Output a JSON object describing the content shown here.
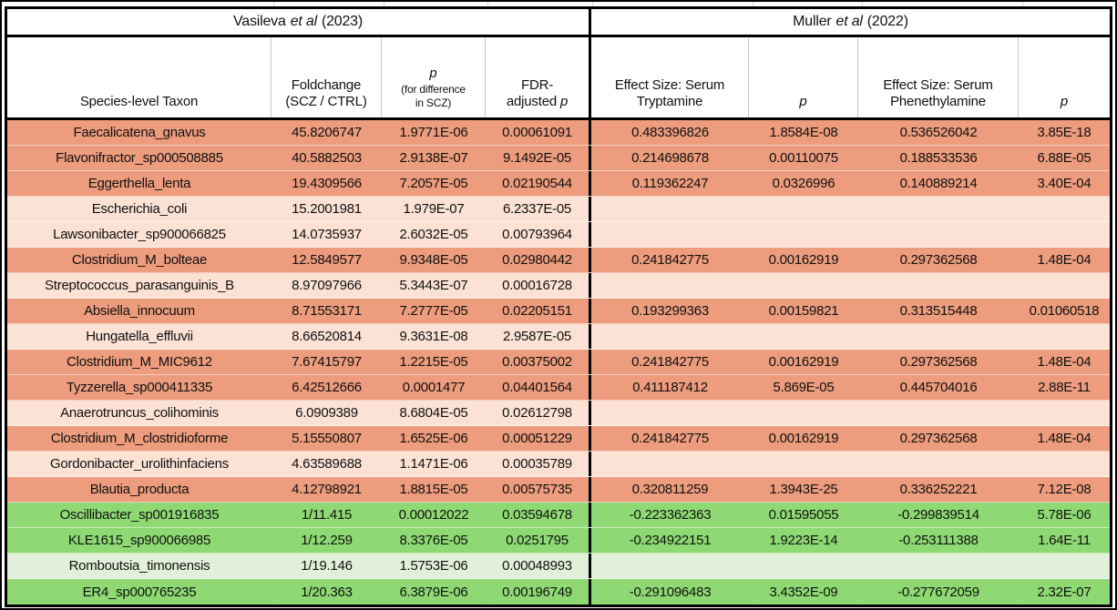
{
  "sections": {
    "left": {
      "author": "Vasileva",
      "etal": "et al",
      "year": "(2023)"
    },
    "right": {
      "author": "Muller",
      "etal": "et al",
      "year": "(2022)"
    }
  },
  "headers": {
    "taxon": "Species-level Taxon",
    "foldchange_line1": "Foldchange",
    "foldchange_line2": "(SCZ / CTRL)",
    "p_symbol": "p",
    "p_diff_line1": "(for difference",
    "p_diff_line2": "in SCZ)",
    "fdr_line1": "FDR-",
    "fdr_line2_prefix": "adjusted ",
    "effect_tryptamine_line1": "Effect Size: Serum",
    "effect_tryptamine_line2": "Tryptamine",
    "effect_phenethylamine_line1": "Effect Size: Serum",
    "effect_phenethylamine_line2": "Phenethylamine"
  },
  "colors": {
    "increased_strong": "#ED9C7D",
    "increased_light": "#FBE2D5",
    "decreased_strong": "#8ED973",
    "decreased_light": "#E2F0DA"
  },
  "rows": [
    {
      "taxon": "Faecalicatena_gnavus",
      "foldchange": "45.8206747",
      "p": "1.9771E-06",
      "fdr": "0.00061091",
      "effect_tryptamine": "0.483396826",
      "p_tryptamine": "1.8584E-08",
      "effect_phenethylamine": "0.536526042",
      "p_phenethylamine": "3.85E-18",
      "tone": "increased_strong"
    },
    {
      "taxon": "Flavonifractor_sp000508885",
      "foldchange": "40.5882503",
      "p": "2.9138E-07",
      "fdr": "9.1492E-05",
      "effect_tryptamine": "0.214698678",
      "p_tryptamine": "0.00110075",
      "effect_phenethylamine": "0.188533536",
      "p_phenethylamine": "6.88E-05",
      "tone": "increased_strong"
    },
    {
      "taxon": "Eggerthella_lenta",
      "foldchange": "19.4309566",
      "p": "7.2057E-05",
      "fdr": "0.02190544",
      "effect_tryptamine": "0.119362247",
      "p_tryptamine": "0.0326996",
      "effect_phenethylamine": "0.140889214",
      "p_phenethylamine": "3.40E-04",
      "tone": "increased_strong"
    },
    {
      "taxon": "Escherichia_coli",
      "foldchange": "15.2001981",
      "p": "1.979E-07",
      "fdr": "6.2337E-05",
      "effect_tryptamine": "",
      "p_tryptamine": "",
      "effect_phenethylamine": "",
      "p_phenethylamine": "",
      "tone": "increased_light"
    },
    {
      "taxon": "Lawsonibacter_sp900066825",
      "foldchange": "14.0735937",
      "p": "2.6032E-05",
      "fdr": "0.00793964",
      "effect_tryptamine": "",
      "p_tryptamine": "",
      "effect_phenethylamine": "",
      "p_phenethylamine": "",
      "tone": "increased_light"
    },
    {
      "taxon": "Clostridium_M_bolteae",
      "foldchange": "12.5849577",
      "p": "9.9348E-05",
      "fdr": "0.02980442",
      "effect_tryptamine": "0.241842775",
      "p_tryptamine": "0.00162919",
      "effect_phenethylamine": "0.297362568",
      "p_phenethylamine": "1.48E-04",
      "tone": "increased_strong"
    },
    {
      "taxon": "Streptococcus_parasanguinis_B",
      "foldchange": "8.97097966",
      "p": "5.3443E-07",
      "fdr": "0.00016728",
      "effect_tryptamine": "",
      "p_tryptamine": "",
      "effect_phenethylamine": "",
      "p_phenethylamine": "",
      "tone": "increased_light"
    },
    {
      "taxon": "Absiella_innocuum",
      "foldchange": "8.71553171",
      "p": "7.2777E-05",
      "fdr": "0.02205151",
      "effect_tryptamine": "0.193299363",
      "p_tryptamine": "0.00159821",
      "effect_phenethylamine": "0.313515448",
      "p_phenethylamine": "0.01060518",
      "tone": "increased_strong"
    },
    {
      "taxon": "Hungatella_effluvii",
      "foldchange": "8.66520814",
      "p": "9.3631E-08",
      "fdr": "2.9587E-05",
      "effect_tryptamine": "",
      "p_tryptamine": "",
      "effect_phenethylamine": "",
      "p_phenethylamine": "",
      "tone": "increased_light"
    },
    {
      "taxon": "Clostridium_M_MIC9612",
      "foldchange": "7.67415797",
      "p": "1.2215E-05",
      "fdr": "0.00375002",
      "effect_tryptamine": "0.241842775",
      "p_tryptamine": "0.00162919",
      "effect_phenethylamine": "0.297362568",
      "p_phenethylamine": "1.48E-04",
      "tone": "increased_strong"
    },
    {
      "taxon": "Tyzzerella_sp000411335",
      "foldchange": "6.42512666",
      "p": "0.0001477",
      "fdr": "0.04401564",
      "effect_tryptamine": "0.411187412",
      "p_tryptamine": "5.869E-05",
      "effect_phenethylamine": "0.445704016",
      "p_phenethylamine": "2.88E-11",
      "tone": "increased_strong"
    },
    {
      "taxon": "Anaerotruncus_colihominis",
      "foldchange": "6.0909389",
      "p": "8.6804E-05",
      "fdr": "0.02612798",
      "effect_tryptamine": "",
      "p_tryptamine": "",
      "effect_phenethylamine": "",
      "p_phenethylamine": "",
      "tone": "increased_light"
    },
    {
      "taxon": "Clostridium_M_clostridioforme",
      "foldchange": "5.15550807",
      "p": "1.6525E-06",
      "fdr": "0.00051229",
      "effect_tryptamine": "0.241842775",
      "p_tryptamine": "0.00162919",
      "effect_phenethylamine": "0.297362568",
      "p_phenethylamine": "1.48E-04",
      "tone": "increased_strong"
    },
    {
      "taxon": "Gordonibacter_urolithinfaciens",
      "foldchange": "4.63589688",
      "p": "1.1471E-06",
      "fdr": "0.00035789",
      "effect_tryptamine": "",
      "p_tryptamine": "",
      "effect_phenethylamine": "",
      "p_phenethylamine": "",
      "tone": "increased_light"
    },
    {
      "taxon": "Blautia_producta",
      "foldchange": "4.12798921",
      "p": "1.8815E-05",
      "fdr": "0.00575735",
      "effect_tryptamine": "0.320811259",
      "p_tryptamine": "1.3943E-25",
      "effect_phenethylamine": "0.336252221",
      "p_phenethylamine": "7.12E-08",
      "tone": "increased_strong"
    },
    {
      "taxon": "Oscillibacter_sp001916835",
      "foldchange": "1/11.415",
      "p": "0.00012022",
      "fdr": "0.03594678",
      "effect_tryptamine": "-0.223362363",
      "p_tryptamine": "0.01595055",
      "effect_phenethylamine": "-0.299839514",
      "p_phenethylamine": "5.78E-06",
      "tone": "decreased_strong"
    },
    {
      "taxon": "KLE1615_sp900066985",
      "foldchange": "1/12.259",
      "p": "8.3376E-05",
      "fdr": "0.0251795",
      "effect_tryptamine": "-0.234922151",
      "p_tryptamine": "1.9223E-14",
      "effect_phenethylamine": "-0.253111388",
      "p_phenethylamine": "1.64E-11",
      "tone": "decreased_strong"
    },
    {
      "taxon": "Romboutsia_timonensis",
      "foldchange": "1/19.146",
      "p": "1.5753E-06",
      "fdr": "0.00048993",
      "effect_tryptamine": "",
      "p_tryptamine": "",
      "effect_phenethylamine": "",
      "p_phenethylamine": "",
      "tone": "decreased_light"
    },
    {
      "taxon": "ER4_sp000765235",
      "foldchange": "1/20.363",
      "p": "6.3879E-06",
      "fdr": "0.00196749",
      "effect_tryptamine": "-0.291096483",
      "p_tryptamine": "3.4352E-09",
      "effect_phenethylamine": "-0.277672059",
      "p_phenethylamine": "2.32E-07",
      "tone": "decreased_strong"
    }
  ]
}
